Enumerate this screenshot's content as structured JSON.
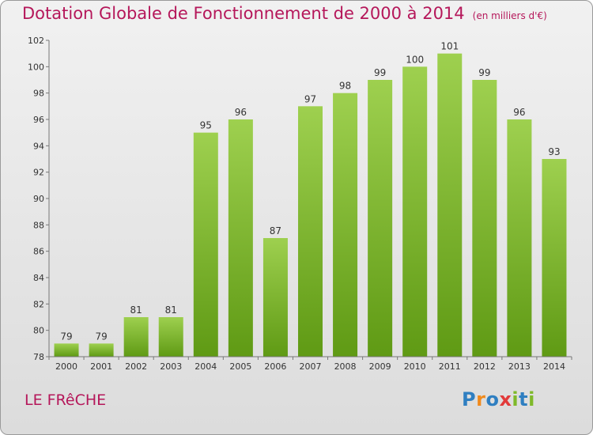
{
  "title": "Dotation Globale de Fonctionnement de 2000 à 2014",
  "subtitle": "(en milliers d'€)",
  "commune": "LE FRêCHE",
  "logo": {
    "letters": [
      "P",
      "r",
      "o",
      "x",
      "i",
      "t",
      "i"
    ],
    "colors": [
      "#2f7fc1",
      "#f08a1c",
      "#2f7fc1",
      "#e23a3a",
      "#7fb92a",
      "#2f7fc1",
      "#7fb92a"
    ]
  },
  "colors": {
    "bar_light": "#9ed04f",
    "bar_dark": "#5f9a14",
    "title": "#b5175a"
  },
  "chart_data": {
    "type": "bar",
    "categories": [
      "2000",
      "2001",
      "2002",
      "2003",
      "2004",
      "2005",
      "2006",
      "2007",
      "2008",
      "2009",
      "2010",
      "2011",
      "2012",
      "2013",
      "2014"
    ],
    "values": [
      79,
      79,
      81,
      81,
      95,
      96,
      87,
      97,
      98,
      99,
      100,
      101,
      99,
      96,
      93
    ],
    "title": "Dotation Globale de Fonctionnement de 2000 à 2014",
    "subtitle": "(en milliers d'€)",
    "xlabel": "",
    "ylabel": "",
    "ylim": [
      78,
      102
    ],
    "yticks": [
      78,
      80,
      82,
      84,
      86,
      88,
      90,
      92,
      94,
      96,
      98,
      100,
      102
    ],
    "grid": false,
    "data_labels": true
  }
}
